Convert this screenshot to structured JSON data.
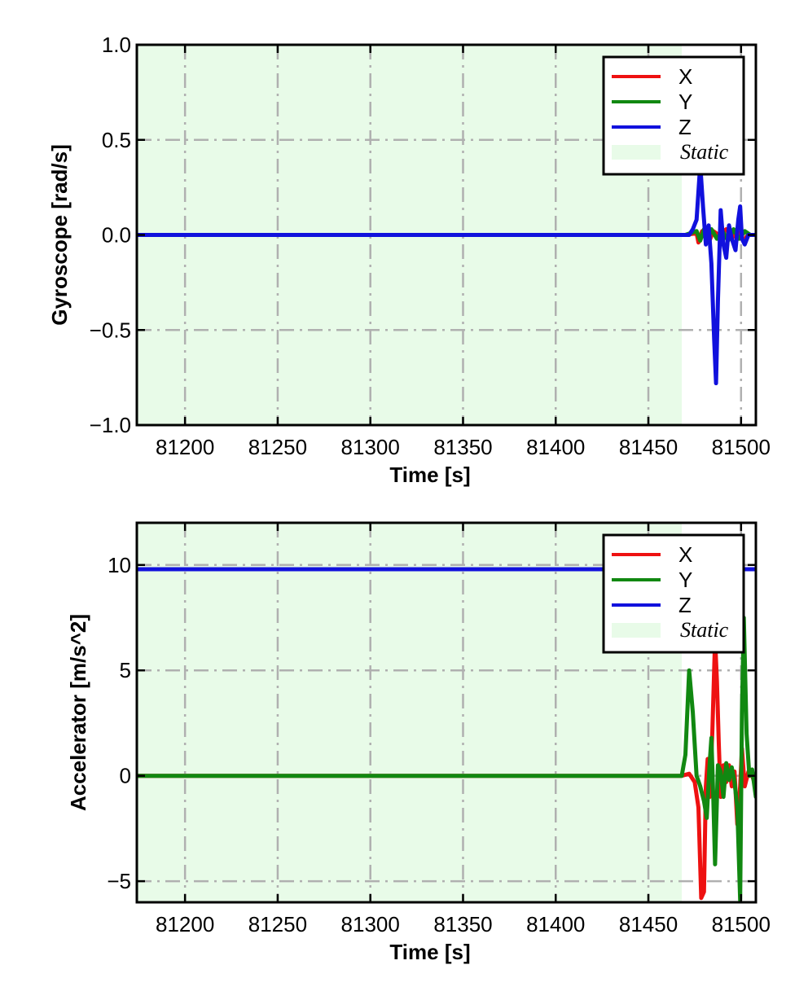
{
  "colors": {
    "x": "#ee1111",
    "y": "#118811",
    "z": "#1111dd",
    "static_fill": "#e8fbe8",
    "grid": "#b0b0b0"
  },
  "chart_data": [
    {
      "type": "line",
      "xlabel": "Time [s]",
      "ylabel": "Gyroscope [rad/s]",
      "xlim": [
        81174,
        81508
      ],
      "ylim": [
        -1.0,
        1.0
      ],
      "xticks": [
        81200,
        81250,
        81300,
        81350,
        81400,
        81450,
        81500
      ],
      "yticks": [
        -1.0,
        -0.5,
        0.0,
        0.5,
        1.0
      ],
      "yticklabels": [
        "−1.0",
        "−0.5",
        "0.0",
        "0.5",
        "1.0"
      ],
      "grid": true,
      "legend_position": "top-right",
      "static_region": {
        "name": "Static",
        "x_start": 81174,
        "x_end": 81468
      },
      "series": [
        {
          "name": "X",
          "color_key": "x",
          "points": [
            [
              81174,
              0.0
            ],
            [
              81470,
              0.0
            ],
            [
              81476,
              0.01
            ],
            [
              81477,
              -0.04
            ],
            [
              81479,
              0.02
            ],
            [
              81481,
              0.0
            ],
            [
              81483,
              -0.03
            ],
            [
              81485,
              0.02
            ],
            [
              81488,
              0.0
            ],
            [
              81492,
              0.03
            ],
            [
              81495,
              -0.02
            ],
            [
              81498,
              0.02
            ],
            [
              81501,
              -0.03
            ],
            [
              81504,
              0.0
            ],
            [
              81508,
              0.0
            ]
          ]
        },
        {
          "name": "Y",
          "color_key": "y",
          "points": [
            [
              81174,
              0.0
            ],
            [
              81470,
              0.0
            ],
            [
              81476,
              0.02
            ],
            [
              81478,
              -0.03
            ],
            [
              81480,
              0.03
            ],
            [
              81482,
              -0.02
            ],
            [
              81484,
              0.03
            ],
            [
              81487,
              -0.02
            ],
            [
              81490,
              0.02
            ],
            [
              81493,
              -0.03
            ],
            [
              81496,
              0.03
            ],
            [
              81499,
              -0.02
            ],
            [
              81502,
              0.02
            ],
            [
              81505,
              0.0
            ],
            [
              81508,
              0.0
            ]
          ]
        },
        {
          "name": "Z",
          "color_key": "z",
          "points": [
            [
              81174,
              0.0
            ],
            [
              81472,
              0.0
            ],
            [
              81474,
              0.03
            ],
            [
              81476,
              0.08
            ],
            [
              81478,
              0.37
            ],
            [
              81479.5,
              0.15
            ],
            [
              81481,
              -0.05
            ],
            [
              81482.5,
              0.05
            ],
            [
              81484,
              -0.15
            ],
            [
              81485.5,
              -0.55
            ],
            [
              81486.5,
              -0.78
            ],
            [
              81487.5,
              -0.35
            ],
            [
              81489,
              0.13
            ],
            [
              81490.5,
              -0.05
            ],
            [
              81492,
              -0.12
            ],
            [
              81493.5,
              0.05
            ],
            [
              81495,
              -0.02
            ],
            [
              81497,
              -0.08
            ],
            [
              81498.5,
              0.08
            ],
            [
              81499.5,
              0.15
            ],
            [
              81500.5,
              -0.02
            ],
            [
              81502,
              -0.05
            ],
            [
              81504,
              0.0
            ],
            [
              81508,
              0.0
            ]
          ]
        }
      ]
    },
    {
      "type": "line",
      "xlabel": "Time [s]",
      "ylabel": "Accelerator [m/s^2]",
      "xlim": [
        81174,
        81508
      ],
      "ylim": [
        -6,
        12
      ],
      "xticks": [
        81200,
        81250,
        81300,
        81350,
        81400,
        81450,
        81500
      ],
      "yticks": [
        -5,
        0,
        5,
        10
      ],
      "yticklabels": [
        "−5",
        "0",
        "5",
        "10"
      ],
      "grid": true,
      "legend_position": "top-right",
      "static_region": {
        "name": "Static",
        "x_start": 81174,
        "x_end": 81468
      },
      "series": [
        {
          "name": "X",
          "color_key": "x",
          "points": [
            [
              81174,
              0.0
            ],
            [
              81468,
              0.0
            ],
            [
              81472,
              0.1
            ],
            [
              81475,
              -0.3
            ],
            [
              81477,
              -1.5
            ],
            [
              81478.5,
              -5.8
            ],
            [
              81480,
              -5.5
            ],
            [
              81481,
              -0.5
            ],
            [
              81482,
              0.8
            ],
            [
              81483,
              -1.0
            ],
            [
              81484.5,
              2.0
            ],
            [
              81486,
              6.5
            ],
            [
              81487,
              4.5
            ],
            [
              81488,
              1.5
            ],
            [
              81489,
              -1.0
            ],
            [
              81490.5,
              0.5
            ],
            [
              81492,
              -0.3
            ],
            [
              81493.5,
              0.5
            ],
            [
              81495,
              -0.5
            ],
            [
              81496.5,
              0.2
            ],
            [
              81498,
              -2.3
            ],
            [
              81499.5,
              -0.5
            ],
            [
              81500.5,
              1.3
            ],
            [
              81502,
              -0.5
            ],
            [
              81504,
              0.2
            ],
            [
              81506,
              0.0
            ],
            [
              81508,
              -0.5
            ]
          ]
        },
        {
          "name": "Y",
          "color_key": "y",
          "points": [
            [
              81174,
              0.0
            ],
            [
              81468,
              0.0
            ],
            [
              81470,
              1.0
            ],
            [
              81472,
              5.0
            ],
            [
              81474,
              3.0
            ],
            [
              81476,
              0.0
            ],
            [
              81478,
              -0.5
            ],
            [
              81480,
              -1.2
            ],
            [
              81481.5,
              -2.0
            ],
            [
              81483,
              0.5
            ],
            [
              81484,
              1.8
            ],
            [
              81485,
              -1.0
            ],
            [
              81486,
              -4.2
            ],
            [
              81487.5,
              0.5
            ],
            [
              81489,
              0.2
            ],
            [
              81490.5,
              -1.0
            ],
            [
              81492,
              0.6
            ],
            [
              81493.5,
              -0.2
            ],
            [
              81495,
              0.4
            ],
            [
              81496.5,
              -0.3
            ],
            [
              81498,
              -1.5
            ],
            [
              81499.5,
              -5.9
            ],
            [
              81500.5,
              3.0
            ],
            [
              81501.5,
              7.5
            ],
            [
              81503,
              2.0
            ],
            [
              81504.5,
              0.0
            ],
            [
              81506,
              0.3
            ],
            [
              81508,
              -1.0
            ]
          ]
        },
        {
          "name": "Z",
          "color_key": "z",
          "points": [
            [
              81174,
              9.8
            ],
            [
              81508,
              9.8
            ]
          ]
        }
      ]
    }
  ]
}
